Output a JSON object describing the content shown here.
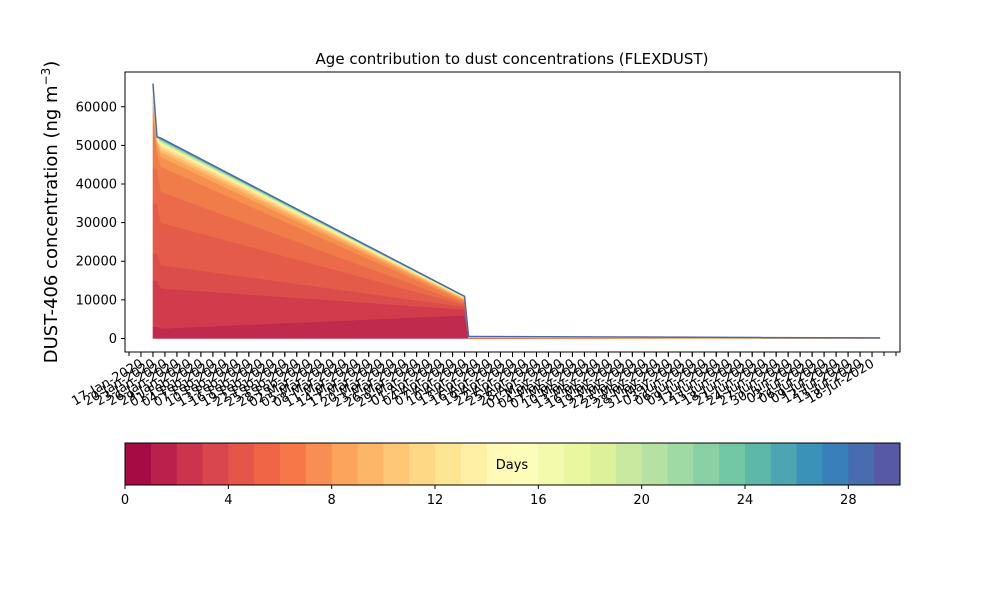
{
  "chart_data": {
    "type": "area",
    "title": "Age contribution to dust concentrations (FLEXDUST)",
    "ylabel_main": "DUST-406 concentration (ng m",
    "ylabel_sup": "−3",
    "ylabel_close": ")",
    "xlabel": "",
    "ylim": [
      -3500,
      69000
    ],
    "yticks": [
      0,
      10000,
      20000,
      30000,
      40000,
      50000,
      60000
    ],
    "xlim": [
      "2020-01-13",
      "2020-07-25"
    ],
    "x_tick_labels": [
      "17-Jan-2020",
      "20-Jan-2020",
      "23-Jan-2020",
      "26-Jan-2020",
      "29-Jan-2020",
      "01-Feb-2020",
      "04-Feb-2020",
      "07-Feb-2020",
      "10-Feb-2020",
      "13-Feb-2020",
      "16-Feb-2020",
      "19-Feb-2020",
      "22-Feb-2020",
      "25-Feb-2020",
      "28-Feb-2020",
      "02-Mar-2020",
      "05-Mar-2020",
      "08-Mar-2020",
      "11-Mar-2020",
      "14-Mar-2020",
      "17-Mar-2020",
      "20-Mar-2020",
      "23-Mar-2020",
      "26-Mar-2020",
      "29-Mar-2020",
      "01-Apr-2020",
      "04-Apr-2020",
      "07-Apr-2020",
      "10-Apr-2020",
      "13-Apr-2020",
      "16-Apr-2020",
      "19-Apr-2020",
      "22-Apr-2020",
      "25-Apr-2020",
      "28-Apr-2020",
      "01-May-2020",
      "04-May-2020",
      "07-May-2020",
      "10-May-2020",
      "13-May-2020",
      "16-May-2020",
      "19-May-2020",
      "22-May-2020",
      "25-May-2020",
      "28-May-2020",
      "31-May-2020",
      "03-Jun-2020",
      "06-Jun-2020",
      "09-Jun-2020",
      "12-Jun-2020",
      "15-Jun-2020",
      "18-Jun-2020",
      "21-Jun-2020",
      "24-Jun-2020",
      "27-Jun-2020",
      "30-Jun-2020",
      "03-Jul-2020",
      "06-Jul-2020",
      "09-Jul-2020",
      "12-Jul-2020",
      "15-Jul-2020",
      "18-Jul-2020"
    ],
    "x": [
      "2020-01-20",
      "2020-01-21",
      "2020-01-22",
      "2020-04-07",
      "2020-04-08",
      "2020-04-09",
      "2020-05-15",
      "2020-06-20",
      "2020-07-20"
    ],
    "series": [
      {
        "values": [
          0,
          0,
          0,
          0,
          0,
          0,
          0,
          0,
          0
        ]
      },
      {
        "values": [
          3000,
          3000,
          2600,
          6000,
          0,
          0,
          0,
          0,
          0
        ]
      },
      {
        "values": [
          15000,
          15000,
          13000,
          7500,
          0,
          0,
          0,
          0,
          0
        ]
      },
      {
        "values": [
          22000,
          22000,
          19000,
          8200,
          0,
          0,
          0,
          0,
          0
        ]
      },
      {
        "values": [
          35000,
          35000,
          30000,
          8700,
          50,
          50,
          0,
          0,
          0
        ]
      },
      {
        "values": [
          44000,
          44000,
          38000,
          9100,
          80,
          80,
          20,
          0,
          0
        ]
      },
      {
        "values": [
          58000,
          48000,
          44500,
          9600,
          120,
          120,
          50,
          0,
          0
        ]
      },
      {
        "values": [
          60000,
          50000,
          47000,
          9900,
          160,
          160,
          80,
          10,
          10
        ]
      },
      {
        "values": [
          61500,
          50800,
          48200,
          10100,
          190,
          190,
          100,
          20,
          20
        ]
      },
      {
        "values": [
          62500,
          51200,
          49000,
          10300,
          220,
          220,
          140,
          40,
          30
        ]
      },
      {
        "values": [
          63200,
          51500,
          49700,
          10450,
          260,
          260,
          180,
          60,
          50
        ]
      },
      {
        "values": [
          63800,
          51700,
          50200,
          10550,
          300,
          300,
          220,
          80,
          70
        ]
      },
      {
        "values": [
          64300,
          51900,
          50600,
          10650,
          340,
          340,
          260,
          110,
          90
        ]
      },
      {
        "values": [
          64800,
          52000,
          51000,
          10720,
          380,
          380,
          300,
          140,
          110
        ]
      },
      {
        "values": [
          65200,
          52100,
          51300,
          10780,
          420,
          420,
          330,
          170,
          130
        ]
      },
      {
        "values": [
          65500,
          52150,
          51500,
          10820,
          450,
          450,
          360,
          200,
          150
        ]
      },
      {
        "values": [
          65800,
          52200,
          51700,
          10870,
          480,
          480,
          380,
          220,
          160
        ]
      },
      {
        "values": [
          66000,
          52250,
          51850,
          10900,
          500,
          500,
          400,
          240,
          170
        ]
      }
    ],
    "colors": [
      "#c02a4d",
      "#d13b4b",
      "#db4d4a",
      "#e55b4a",
      "#ea6a4a",
      "#f07c4a",
      "#f5904f",
      "#f9a75b",
      "#fdbb6b",
      "#fed381",
      "#fee799",
      "#f6f7aa",
      "#d8ee9b",
      "#b2e09d",
      "#84cda4",
      "#5cb5a9",
      "#3f8fb7",
      "#4a68ad"
    ],
    "colorbar": {
      "label": "Days",
      "min": 0,
      "max": 30,
      "bins": 30,
      "ticks": [
        0,
        4,
        8,
        12,
        16,
        20,
        24,
        28
      ],
      "cmap": [
        "#9e0142",
        "#d53e4f",
        "#f46d43",
        "#fdae61",
        "#fee08b",
        "#ffffbf",
        "#e6f598",
        "#abdda4",
        "#66c2a5",
        "#3288bd",
        "#5e4fa2"
      ]
    }
  }
}
